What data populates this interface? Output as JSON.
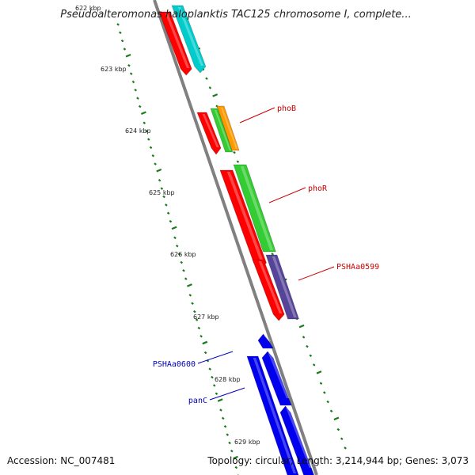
{
  "title": "Pseudoalteromonas haloplanktis TAC125 chromosome I, complete...",
  "footer": {
    "accession": "Accession: NC_007481",
    "info": "Topology: circular; Length: 3,214,944 bp; Genes: 3,073"
  },
  "colors": {
    "backbone": "#808080",
    "tick": "#1a7a1a",
    "label_red": "#cc0000",
    "label_blue": "#0000bb"
  },
  "ticks": [
    {
      "label": "622 kbp",
      "faded": true
    },
    {
      "label": "623 kbp"
    },
    {
      "label": "624 kbp"
    },
    {
      "label": "625 kbp"
    },
    {
      "label": "626 kbp"
    },
    {
      "label": "627 kbp"
    },
    {
      "label": "628 kbp"
    },
    {
      "label": "629 kbp"
    }
  ],
  "genes": [
    {
      "name": "",
      "color": "#ff0000"
    },
    {
      "name": "",
      "color": "#00cccc"
    },
    {
      "name": "phoB",
      "color": "#ff0000"
    },
    {
      "name": "",
      "color": "#33cc33"
    },
    {
      "name": "",
      "color": "#ff9900"
    },
    {
      "name": "",
      "color": "#ff0000"
    },
    {
      "name": "phoR",
      "color": "#33cc33"
    },
    {
      "name": "",
      "color": "#ff0000"
    },
    {
      "name": "PSHAa0599",
      "color": "#554499"
    },
    {
      "name": "PSHAa0600",
      "color": "#0000ee"
    },
    {
      "name": "panC",
      "color": "#0000ee"
    },
    {
      "name": "",
      "color": "#0000ee"
    },
    {
      "name": "",
      "color": "#0000ee"
    }
  ],
  "labels": [
    {
      "text": "phoB",
      "color": "#cc0000"
    },
    {
      "text": "phoR",
      "color": "#cc0000"
    },
    {
      "text": "PSHAa0599",
      "color": "#cc0000"
    },
    {
      "text": "PSHAa0600",
      "color": "#0000bb"
    },
    {
      "text": "panC",
      "color": "#0000bb"
    }
  ]
}
